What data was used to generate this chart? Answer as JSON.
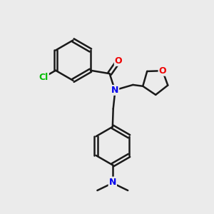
{
  "background_color": "#ebebeb",
  "bond_color": "#1a1a1a",
  "bond_width": 1.8,
  "atom_colors": {
    "Cl": "#00bb00",
    "O": "#ee0000",
    "N": "#0000ee"
  },
  "font_size": 9,
  "figsize": [
    3.0,
    3.0
  ],
  "dpi": 100
}
